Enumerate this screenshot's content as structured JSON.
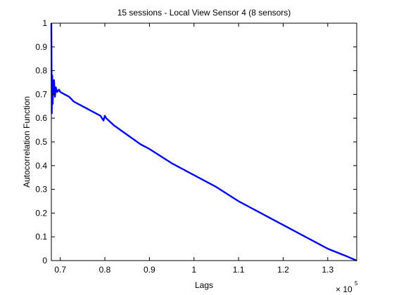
{
  "chart_data": {
    "type": "line",
    "title": "15 sessions - Local View Sensor 4 (8 sensors)",
    "xlabel": "Lags",
    "ylabel": "Autocorrelation Function",
    "x_multiplier_base": "× 10",
    "x_multiplier_exp": "5",
    "xlim": [
      0.68,
      1.365
    ],
    "ylim": [
      0,
      1
    ],
    "xticks": [
      0.7,
      0.8,
      0.9,
      1.0,
      1.1,
      1.2,
      1.3
    ],
    "xtick_labels": [
      "0.7",
      "0.8",
      "0.9",
      "1",
      "1.1",
      "1.2",
      "1.3"
    ],
    "yticks": [
      0,
      0.1,
      0.2,
      0.3,
      0.4,
      0.5,
      0.6,
      0.7,
      0.8,
      0.9,
      1
    ],
    "ytick_labels": [
      "0",
      "0.1",
      "0.2",
      "0.3",
      "0.4",
      "0.5",
      "0.6",
      "0.7",
      "0.8",
      "0.9",
      "1"
    ],
    "grid": false,
    "legend": "none",
    "series": [
      {
        "color": "#0000ff",
        "x": [
          0.68,
          0.681,
          0.682,
          0.683,
          0.684,
          0.685,
          0.686,
          0.688,
          0.69,
          0.693,
          0.697,
          0.7,
          0.71,
          0.72,
          0.73,
          0.74,
          0.75,
          0.76,
          0.77,
          0.78,
          0.79,
          0.797,
          0.8,
          0.803,
          0.82,
          0.85,
          0.88,
          0.9,
          0.95,
          1.0,
          1.05,
          1.1,
          1.15,
          1.2,
          1.25,
          1.3,
          1.34,
          1.365
        ],
        "y": [
          1.0,
          0.62,
          0.78,
          0.66,
          0.74,
          0.7,
          0.76,
          0.69,
          0.73,
          0.71,
          0.72,
          0.71,
          0.7,
          0.69,
          0.67,
          0.66,
          0.65,
          0.64,
          0.63,
          0.62,
          0.61,
          0.59,
          0.61,
          0.6,
          0.57,
          0.53,
          0.49,
          0.47,
          0.41,
          0.36,
          0.31,
          0.25,
          0.2,
          0.15,
          0.1,
          0.05,
          0.02,
          0.0
        ]
      }
    ]
  }
}
